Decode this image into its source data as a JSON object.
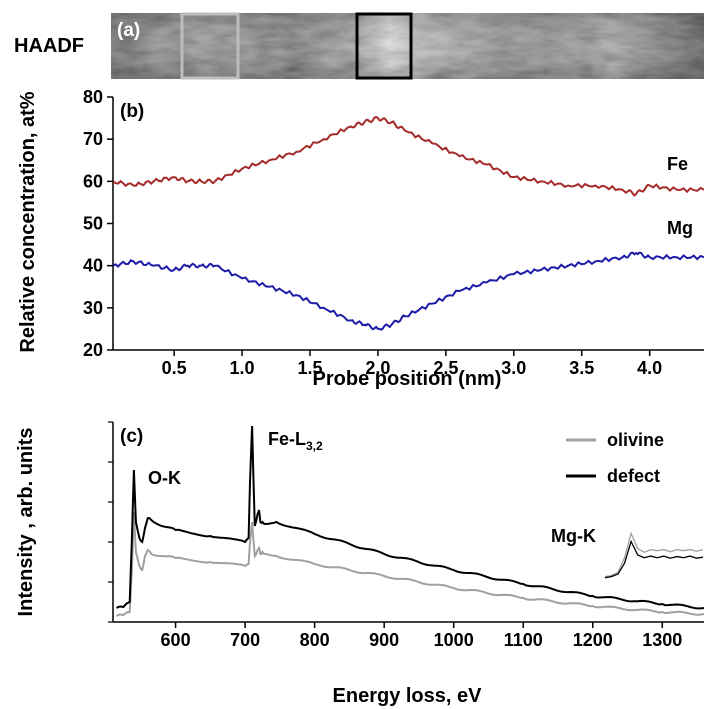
{
  "haadf": {
    "side_label": "HAADF",
    "panel_label": "(a)",
    "boxes": [
      {
        "name": "olivine-region-box",
        "color": "#bdbdbd"
      },
      {
        "name": "defect-region-box",
        "color": "#000000"
      }
    ]
  },
  "chart_data": [
    {
      "type": "line",
      "panel_label": "(b)",
      "xlabel": "Probe position (nm)",
      "ylabel": "Relative concentration, at%",
      "xlim": [
        0.05,
        4.4
      ],
      "ylim": [
        20,
        80
      ],
      "xticks": [
        "0.5",
        "1.0",
        "1.5",
        "2.0",
        "2.5",
        "3.0",
        "3.5",
        "4.0"
      ],
      "yticks": [
        "20",
        "30",
        "40",
        "50",
        "60",
        "70",
        "80"
      ],
      "grid": false,
      "series": [
        {
          "name": "Fe",
          "color": "#a52a2a",
          "x": [
            0.05,
            0.2,
            0.35,
            0.5,
            0.6,
            0.7,
            0.8,
            1.0,
            1.2,
            1.4,
            1.6,
            1.8,
            1.9,
            2.0,
            2.1,
            2.2,
            2.4,
            2.6,
            2.8,
            3.0,
            3.2,
            3.4,
            3.6,
            3.8,
            3.9,
            4.0,
            4.2,
            4.4
          ],
          "values": [
            60,
            59,
            60,
            61,
            60,
            60,
            60,
            63,
            65,
            67,
            70,
            73,
            74,
            75,
            74,
            72,
            69,
            66,
            64,
            61,
            60,
            59,
            59,
            58,
            57,
            59,
            58,
            58
          ]
        },
        {
          "name": "Mg",
          "color": "#1c1ca8",
          "x": [
            0.05,
            0.2,
            0.35,
            0.5,
            0.6,
            0.7,
            0.8,
            1.0,
            1.2,
            1.4,
            1.6,
            1.8,
            1.9,
            2.0,
            2.1,
            2.2,
            2.4,
            2.6,
            2.8,
            3.0,
            3.2,
            3.4,
            3.6,
            3.8,
            3.9,
            4.0,
            4.2,
            4.4
          ],
          "values": [
            40,
            41,
            40,
            39,
            40,
            40,
            40,
            37,
            35,
            33,
            30,
            27,
            26,
            25,
            26,
            28,
            31,
            34,
            36,
            38,
            39,
            40,
            41,
            42,
            43,
            42,
            42,
            42
          ]
        }
      ]
    },
    {
      "type": "line",
      "panel_label": "(c)",
      "xlabel": "Energy loss, eV",
      "ylabel": "Intensity , arb. units",
      "xlim": [
        510,
        1360
      ],
      "ylim": [
        0,
        1
      ],
      "xticks": [
        "600",
        "700",
        "800",
        "900",
        "1000",
        "1100",
        "1200",
        "1300"
      ],
      "yticks": [],
      "grid": false,
      "legend_position": "top-right",
      "series": [
        {
          "name": "olivine",
          "color": "#a0a0a0",
          "x": [
            515,
            525,
            534,
            537,
            540,
            543,
            548,
            552,
            556,
            560,
            565,
            580,
            600,
            650,
            700,
            705,
            707,
            710,
            714,
            718,
            720,
            722,
            725,
            730,
            745,
            800,
            900,
            1000,
            1100,
            1200,
            1300,
            1360
          ],
          "values": [
            0.03,
            0.035,
            0.05,
            0.25,
            0.55,
            0.35,
            0.28,
            0.26,
            0.33,
            0.36,
            0.34,
            0.33,
            0.32,
            0.3,
            0.28,
            0.29,
            0.4,
            0.5,
            0.33,
            0.36,
            0.37,
            0.34,
            0.35,
            0.34,
            0.33,
            0.29,
            0.23,
            0.17,
            0.12,
            0.08,
            0.05,
            0.04
          ]
        },
        {
          "name": "defect",
          "color": "#000000",
          "x": [
            515,
            525,
            534,
            537,
            540,
            543,
            548,
            552,
            556,
            560,
            565,
            580,
            600,
            650,
            700,
            705,
            707,
            710,
            714,
            718,
            720,
            722,
            725,
            730,
            745,
            800,
            900,
            1000,
            1100,
            1200,
            1300,
            1360
          ],
          "values": [
            0.07,
            0.075,
            0.1,
            0.4,
            0.76,
            0.5,
            0.42,
            0.4,
            0.47,
            0.52,
            0.51,
            0.48,
            0.46,
            0.43,
            0.4,
            0.42,
            0.7,
            0.98,
            0.48,
            0.54,
            0.56,
            0.5,
            0.5,
            0.49,
            0.5,
            0.44,
            0.34,
            0.26,
            0.19,
            0.13,
            0.09,
            0.07
          ]
        }
      ],
      "annotations": {
        "ok": "O-K",
        "fe_main": "Fe-L",
        "fe_sub": "3,2",
        "mgk": "Mg-K"
      },
      "inset": {
        "olivine": [
          0.1,
          0.12,
          0.18,
          0.45,
          0.9,
          0.62,
          0.55,
          0.6,
          0.58,
          0.6,
          0.56,
          0.6,
          0.58,
          0.6,
          0.57,
          0.6
        ],
        "defect": [
          0.08,
          0.1,
          0.15,
          0.35,
          0.75,
          0.5,
          0.45,
          0.48,
          0.45,
          0.48,
          0.44,
          0.47,
          0.45,
          0.48,
          0.44,
          0.46
        ]
      }
    }
  ]
}
